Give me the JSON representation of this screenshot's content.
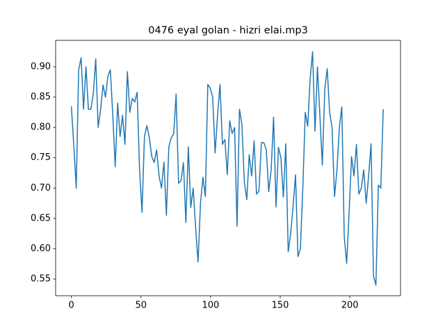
{
  "chart_data": {
    "type": "line",
    "title": "0476 eyal golan - hizri elai.mp3",
    "x": [
      0,
      1.75,
      3.5,
      5.25,
      7,
      8.75,
      10.5,
      12.25,
      14,
      15.75,
      17.5,
      19.25,
      21,
      22.75,
      24.5,
      26.25,
      28,
      29.75,
      31.5,
      33.25,
      35,
      36.75,
      38.5,
      40.25,
      42,
      43.75,
      45.5,
      47.25,
      49,
      50.75,
      52.5,
      54.25,
      56,
      57.75,
      59.5,
      61.25,
      63,
      64.75,
      66.5,
      68.25,
      70,
      71.75,
      73.5,
      75.25,
      77,
      78.75,
      80.5,
      82.25,
      84,
      85.75,
      87.5,
      89.25,
      91,
      92.75,
      94.5,
      96.25,
      98,
      99.75,
      101.5,
      103.25,
      105,
      106.75,
      108.5,
      110.25,
      112,
      113.75,
      115.5,
      117.25,
      119,
      120.75,
      122.5,
      124.25,
      126,
      127.75,
      129.5,
      131.25,
      133,
      134.75,
      136.5,
      138.25,
      140,
      141.75,
      143.5,
      145.25,
      147,
      148.75,
      150.5,
      152.25,
      154,
      155.75,
      157.5,
      159.25,
      161,
      162.75,
      164.5,
      166.25,
      168,
      169.75,
      171.5,
      173.25,
      175,
      176.75,
      178.5,
      180.25,
      182,
      183.75,
      185.5,
      187.25,
      189,
      190.75,
      192.5,
      194.25,
      196,
      197.75,
      199.5,
      201.25,
      203,
      204.75,
      206.5,
      208.25,
      210,
      211.75,
      213.5,
      215.25,
      217,
      218.75,
      220.5,
      222.25,
      224
    ],
    "series": [
      {
        "color": "#1f77b4",
        "values": [
          0.835,
          0.77,
          0.7,
          0.895,
          0.915,
          0.83,
          0.9,
          0.83,
          0.83,
          0.855,
          0.913,
          0.8,
          0.83,
          0.87,
          0.85,
          0.885,
          0.895,
          0.82,
          0.735,
          0.84,
          0.785,
          0.82,
          0.772,
          0.892,
          0.825,
          0.848,
          0.842,
          0.858,
          0.73,
          0.66,
          0.785,
          0.803,
          0.783,
          0.752,
          0.742,
          0.763,
          0.72,
          0.7,
          0.743,
          0.655,
          0.768,
          0.783,
          0.79,
          0.855,
          0.708,
          0.712,
          0.742,
          0.643,
          0.768,
          0.668,
          0.7,
          0.635,
          0.578,
          0.675,
          0.718,
          0.686,
          0.871,
          0.865,
          0.85,
          0.758,
          0.82,
          0.871,
          0.772,
          0.78,
          0.722,
          0.811,
          0.79,
          0.8,
          0.637,
          0.83,
          0.805,
          0.71,
          0.681,
          0.755,
          0.72,
          0.778,
          0.69,
          0.695,
          0.775,
          0.775,
          0.763,
          0.694,
          0.73,
          0.817,
          0.669,
          0.767,
          0.75,
          0.685,
          0.773,
          0.595,
          0.625,
          0.67,
          0.722,
          0.587,
          0.6,
          0.7,
          0.825,
          0.802,
          0.88,
          0.925,
          0.794,
          0.9,
          0.82,
          0.738,
          0.862,
          0.897,
          0.825,
          0.8,
          0.686,
          0.73,
          0.8,
          0.834,
          0.62,
          0.576,
          0.66,
          0.752,
          0.72,
          0.772,
          0.69,
          0.7,
          0.73,
          0.675,
          0.72,
          0.773,
          0.555,
          0.54,
          0.705,
          0.7,
          0.83
        ]
      }
    ],
    "xlim": [
      -11.3,
      236.4
    ],
    "xticks": [
      0,
      50,
      100,
      150,
      200
    ],
    "ylim": [
      0.5225,
      0.9436
    ],
    "yticks": [
      {
        "value": 0.55,
        "label": "0.55"
      },
      {
        "value": 0.6,
        "label": "0.60"
      },
      {
        "value": 0.65,
        "label": "0.65"
      },
      {
        "value": 0.7,
        "label": "0.70"
      },
      {
        "value": 0.75,
        "label": "0.75"
      },
      {
        "value": 0.8,
        "label": "0.80"
      },
      {
        "value": 0.85,
        "label": "0.85"
      },
      {
        "value": 0.9,
        "label": "0.90"
      }
    ]
  }
}
